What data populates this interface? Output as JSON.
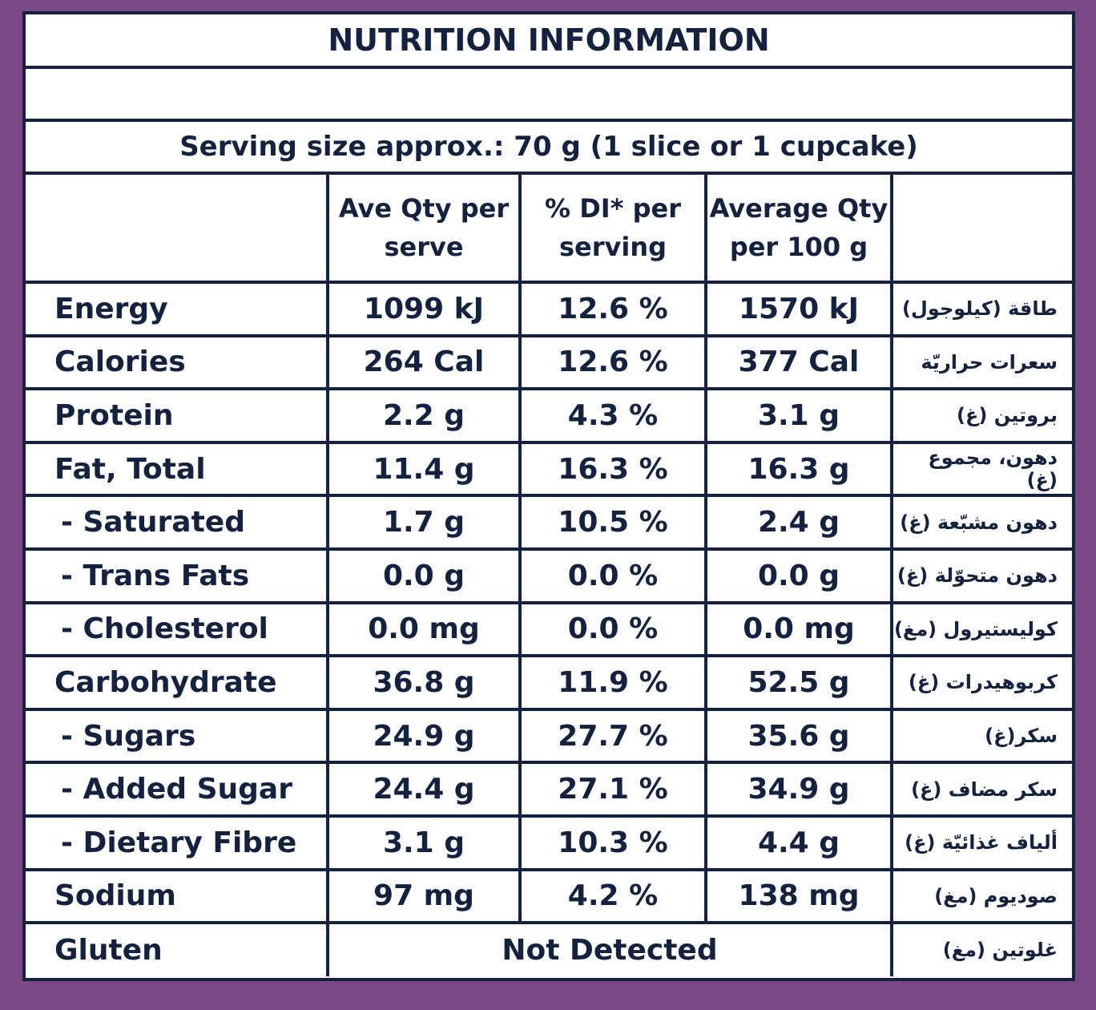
{
  "title": "NUTRITION INFORMATION",
  "serving_size": "Serving size approx.: 70 g (1 slice or 1 cupcake)",
  "columns": {
    "per_serve": "Ave Qty per serve",
    "di": "% DI* per serving",
    "per_100g": "Average Qty per 100 g"
  },
  "rows": [
    {
      "label": "Energy",
      "serve": "1099 kJ",
      "di": "12.6 %",
      "p100": "1570 kJ",
      "ar": "طاقة (كيلوجول)"
    },
    {
      "label": "Calories",
      "serve": "264 Cal",
      "di": "12.6 %",
      "p100": "377 Cal",
      "ar": "سعرات حراريّة"
    },
    {
      "label": "Protein",
      "serve": "2.2 g",
      "di": "4.3 %",
      "p100": "3.1 g",
      "ar": "بروتين (غ)"
    },
    {
      "label": "Fat, Total",
      "serve": "11.4 g",
      "di": "16.3 %",
      "p100": "16.3 g",
      "ar": "دهون، مجموع (غ)"
    },
    {
      "label": "- Saturated",
      "serve": "1.7 g",
      "di": "10.5 %",
      "p100": "2.4 g",
      "ar": "دهون مشبّعة (غ)"
    },
    {
      "label": "- Trans Fats",
      "serve": "0.0 g",
      "di": "0.0 %",
      "p100": "0.0 g",
      "ar": "دهون متحوّلة (غ)"
    },
    {
      "label": "- Cholesterol",
      "serve": "0.0 mg",
      "di": "0.0 %",
      "p100": "0.0 mg",
      "ar": "كوليستيرول (مغ)"
    },
    {
      "label": "Carbohydrate",
      "serve": "36.8 g",
      "di": "11.9 %",
      "p100": "52.5 g",
      "ar": "كربوهيدرات (غ)"
    },
    {
      "label": "- Sugars",
      "serve": "24.9 g",
      "di": "27.7 %",
      "p100": "35.6 g",
      "ar": "سكر(غ)"
    },
    {
      "label": "- Added Sugar",
      "serve": "24.4 g",
      "di": "27.1 %",
      "p100": "34.9 g",
      "ar": "سكر مضاف (غ)"
    },
    {
      "label": "- Dietary Fibre",
      "serve": "3.1 g",
      "di": "10.3 %",
      "p100": "4.4 g",
      "ar": "ألياف غذائيّة (غ)"
    },
    {
      "label": "Sodium",
      "serve": "97 mg",
      "di": "4.2 %",
      "p100": "138 mg",
      "ar": "صوديوم (مغ)"
    }
  ],
  "gluten": {
    "label": "Gluten",
    "value": "Not Detected",
    "ar": "غلوتين (مغ)"
  }
}
